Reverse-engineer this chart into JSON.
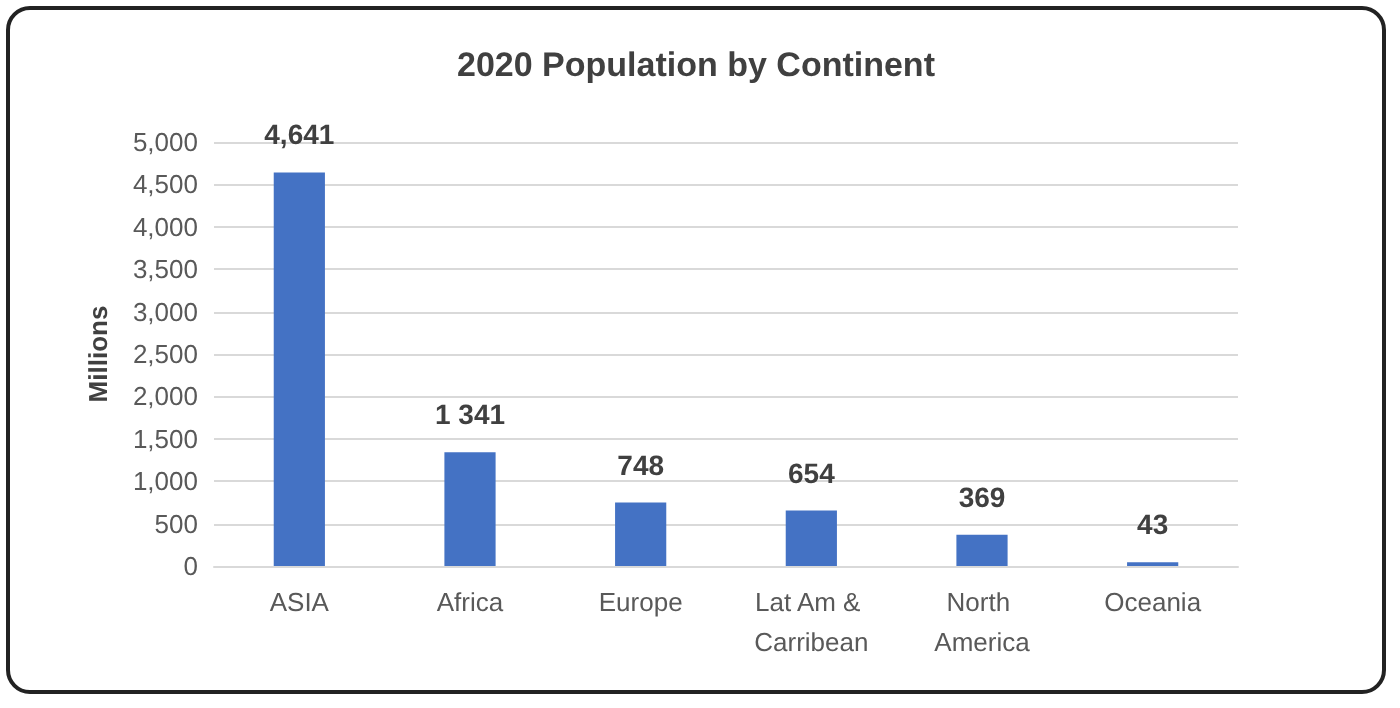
{
  "chart_data": {
    "type": "bar",
    "title": "2020 Population by Continent",
    "ylabel": "Millions",
    "categories": [
      "ASIA",
      "Africa",
      "Europe",
      "Lat Am & Carribean",
      "North America",
      "Oceania"
    ],
    "values": [
      4641,
      1341,
      748,
      654,
      369,
      43
    ],
    "value_labels": [
      "4,641",
      "1 341",
      "748",
      "654",
      "369",
      "43"
    ],
    "color": "#4472c4",
    "ylim": [
      0,
      5000
    ],
    "yticks": [
      {
        "value": 0,
        "label": "0"
      },
      {
        "value": 500,
        "label": "500"
      },
      {
        "value": 1000,
        "label": "1,000"
      },
      {
        "value": 1500,
        "label": "1,500"
      },
      {
        "value": 2000,
        "label": "2,000"
      },
      {
        "value": 2500,
        "label": "2,500"
      },
      {
        "value": 3000,
        "label": "3,000"
      },
      {
        "value": 3500,
        "label": "3,500"
      },
      {
        "value": 4000,
        "label": "4,000"
      },
      {
        "value": 4500,
        "label": "4,500"
      },
      {
        "value": 5000,
        "label": "5,000"
      }
    ],
    "grid": true
  }
}
